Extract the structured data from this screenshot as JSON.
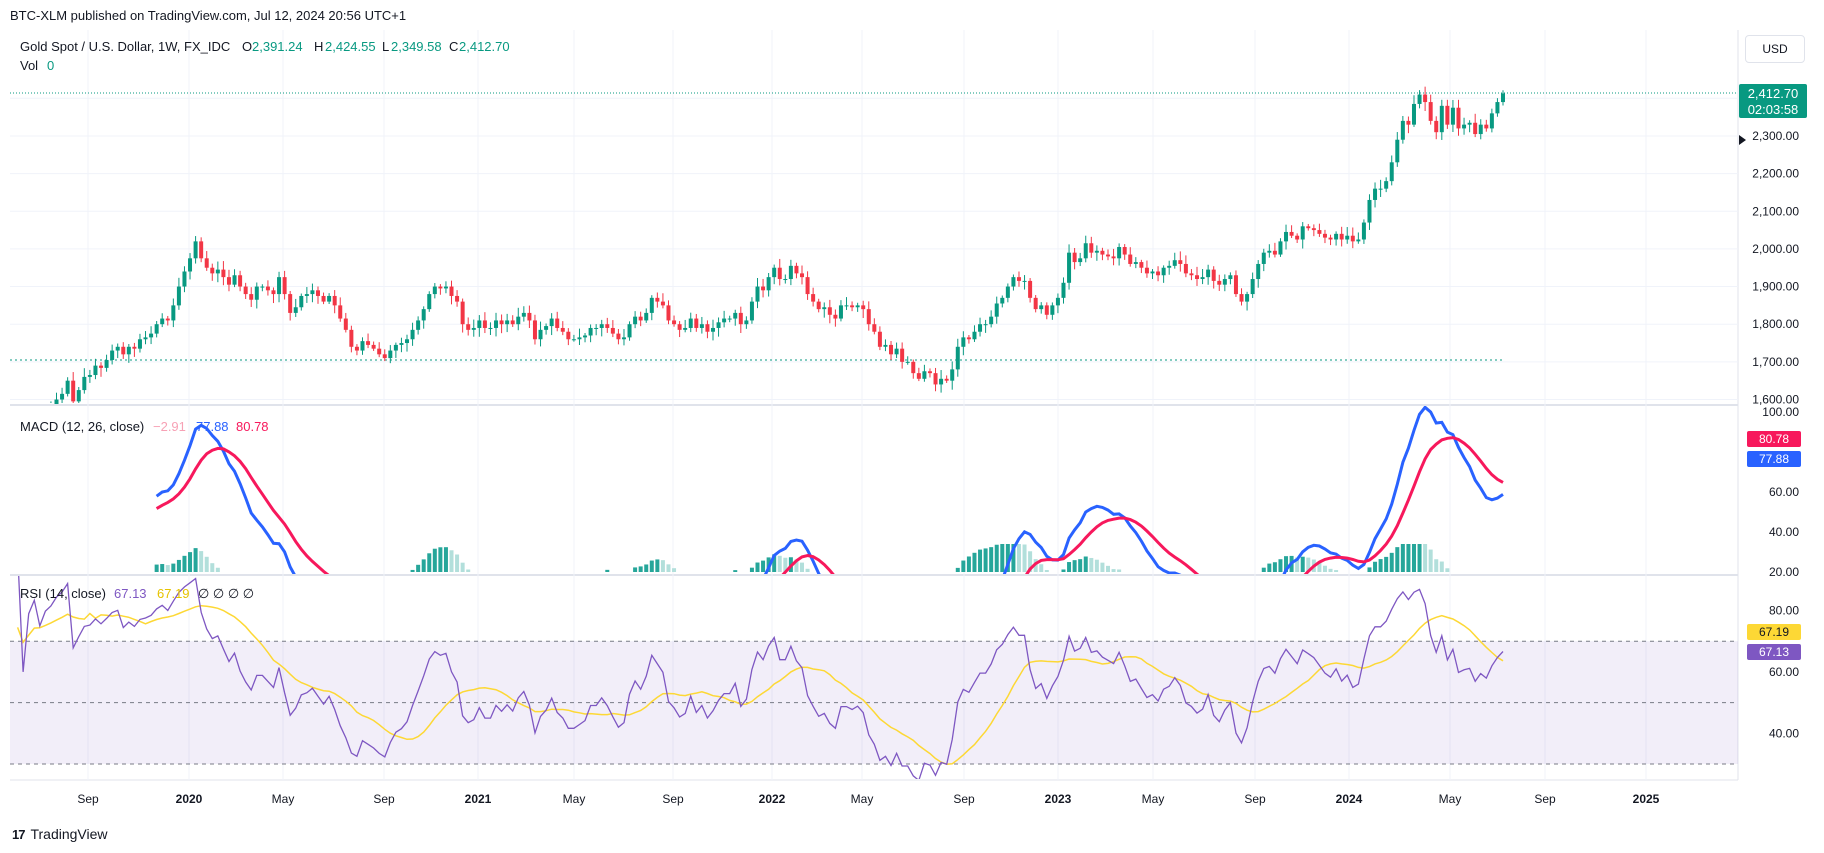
{
  "header": {
    "published": "BTC-XLM published on TradingView.com, Jul 12, 2024 20:56 UTC+1"
  },
  "currency_button": "USD",
  "legend": {
    "symbol": "Gold Spot / U.S. Dollar, 1W, FX_IDC",
    "o_label": "O",
    "o": "2,391.24",
    "h_label": "H",
    "h": "2,424.55",
    "l_label": "L",
    "l": "2,349.58",
    "c_label": "C",
    "c": "2,412.70",
    "vol_label": "Vol",
    "vol": "0",
    "macd_label": "MACD (12, 26, close)",
    "macd_hist": "−2.91",
    "macd_line": "77.88",
    "macd_signal": "80.78",
    "rsi_label": "RSI (14, close)",
    "rsi": "67.13",
    "rsi_ma": "67.19",
    "rsi_extra": "∅ ∅ ∅ ∅"
  },
  "price_badge": {
    "price": "2,412.70",
    "countdown": "02:03:58"
  },
  "macd_badges": {
    "signal": "80.78",
    "macd": "77.88"
  },
  "rsi_badges": {
    "ma": "67.19",
    "rsi": "67.13"
  },
  "footer": {
    "brand": "TradingView"
  },
  "colors": {
    "up": "#089981",
    "down": "#f23645",
    "macd": "#2962ff",
    "signal": "#f7185c",
    "rsi": "#7e57c2",
    "rsi_ma": "#fdd835"
  },
  "chart_data": [
    {
      "type": "candlestick",
      "title": "Gold Spot / U.S. Dollar, 1W, FX_IDC",
      "x_ticks": [
        "Sep",
        "2020",
        "May",
        "Sep",
        "2021",
        "May",
        "Sep",
        "2022",
        "May",
        "Sep",
        "2023",
        "May",
        "Sep",
        "2024",
        "May",
        "Sep",
        "2025"
      ],
      "y_ticks": [
        "1,600.00",
        "1,700.00",
        "1,800.00",
        "1,900.00",
        "2,000.00",
        "2,100.00",
        "2,200.00",
        "2,300.00"
      ],
      "ylim": [
        1585,
        2450
      ],
      "series": [
        {
          "close": [
            1512,
            1530,
            1518,
            1545,
            1560,
            1552,
            1571,
            1580,
            1600,
            1615,
            1650,
            1595,
            1625,
            1660,
            1665,
            1690,
            1684,
            1705,
            1730,
            1740,
            1720,
            1740,
            1735,
            1760,
            1765,
            1775,
            1800,
            1815,
            1810,
            1850,
            1900,
            1940,
            1975,
            2020,
            1975,
            1950,
            1935,
            1945,
            1925,
            1905,
            1930,
            1900,
            1880,
            1865,
            1900,
            1900,
            1890,
            1880,
            1925,
            1880,
            1830,
            1845,
            1875,
            1880,
            1890,
            1875,
            1860,
            1875,
            1850,
            1815,
            1785,
            1740,
            1730,
            1755,
            1745,
            1735,
            1720,
            1710,
            1730,
            1745,
            1750,
            1760,
            1785,
            1810,
            1840,
            1880,
            1900,
            1895,
            1900,
            1875,
            1860,
            1800,
            1785,
            1790,
            1810,
            1790,
            1790,
            1810,
            1800,
            1810,
            1800,
            1820,
            1830,
            1810,
            1760,
            1785,
            1795,
            1815,
            1790,
            1780,
            1760,
            1760,
            1765,
            1770,
            1790,
            1790,
            1800,
            1790,
            1775,
            1760,
            1765,
            1800,
            1820,
            1810,
            1830,
            1870,
            1860,
            1850,
            1810,
            1800,
            1785,
            1790,
            1815,
            1790,
            1800,
            1780,
            1790,
            1805,
            1815,
            1815,
            1830,
            1800,
            1810,
            1860,
            1900,
            1890,
            1925,
            1950,
            1920,
            1920,
            1955,
            1935,
            1925,
            1880,
            1860,
            1840,
            1845,
            1825,
            1815,
            1850,
            1850,
            1845,
            1850,
            1840,
            1800,
            1780,
            1740,
            1745,
            1720,
            1735,
            1700,
            1700,
            1670,
            1655,
            1675,
            1670,
            1640,
            1655,
            1650,
            1680,
            1740,
            1765,
            1760,
            1780,
            1800,
            1800,
            1820,
            1855,
            1870,
            1900,
            1925,
            1915,
            1915,
            1870,
            1840,
            1850,
            1825,
            1850,
            1870,
            1910,
            1990,
            1965,
            1975,
            2015,
            1990,
            1995,
            1985,
            1980,
            1975,
            2005,
            1985,
            1960,
            1965,
            1950,
            1935,
            1940,
            1930,
            1950,
            1955,
            1970,
            1960,
            1935,
            1930,
            1920,
            1925,
            1945,
            1915,
            1905,
            1920,
            1930,
            1880,
            1860,
            1880,
            1920,
            1960,
            1990,
            1995,
            1985,
            2020,
            2045,
            2035,
            2025,
            2060,
            2055,
            2050,
            2040,
            2030,
            2025,
            2040,
            2025,
            2035,
            2020,
            2025,
            2070,
            2130,
            2160,
            2160,
            2180,
            2230,
            2290,
            2340,
            2330,
            2385,
            2410,
            2390,
            2340,
            2310,
            2380,
            2330,
            2375,
            2320,
            2330,
            2335,
            2305,
            2330,
            2320,
            2360,
            2390,
            2412.7
          ]
        }
      ]
    },
    {
      "type": "line",
      "title": "MACD (12, 26, close)",
      "y_ticks": [
        "100.00",
        "60.00",
        "40.00",
        "20.00"
      ],
      "series": [
        {
          "name": "MACD"
        },
        {
          "name": "Signal"
        }
      ]
    },
    {
      "type": "line",
      "title": "RSI (14, close)",
      "y_ticks": [
        "80.00",
        "60.00",
        "40.00"
      ],
      "bands": {
        "upper": 70,
        "middle": 50,
        "lower": 30
      },
      "series": [
        {
          "name": "RSI"
        },
        {
          "name": "RSI-MA"
        }
      ]
    }
  ]
}
